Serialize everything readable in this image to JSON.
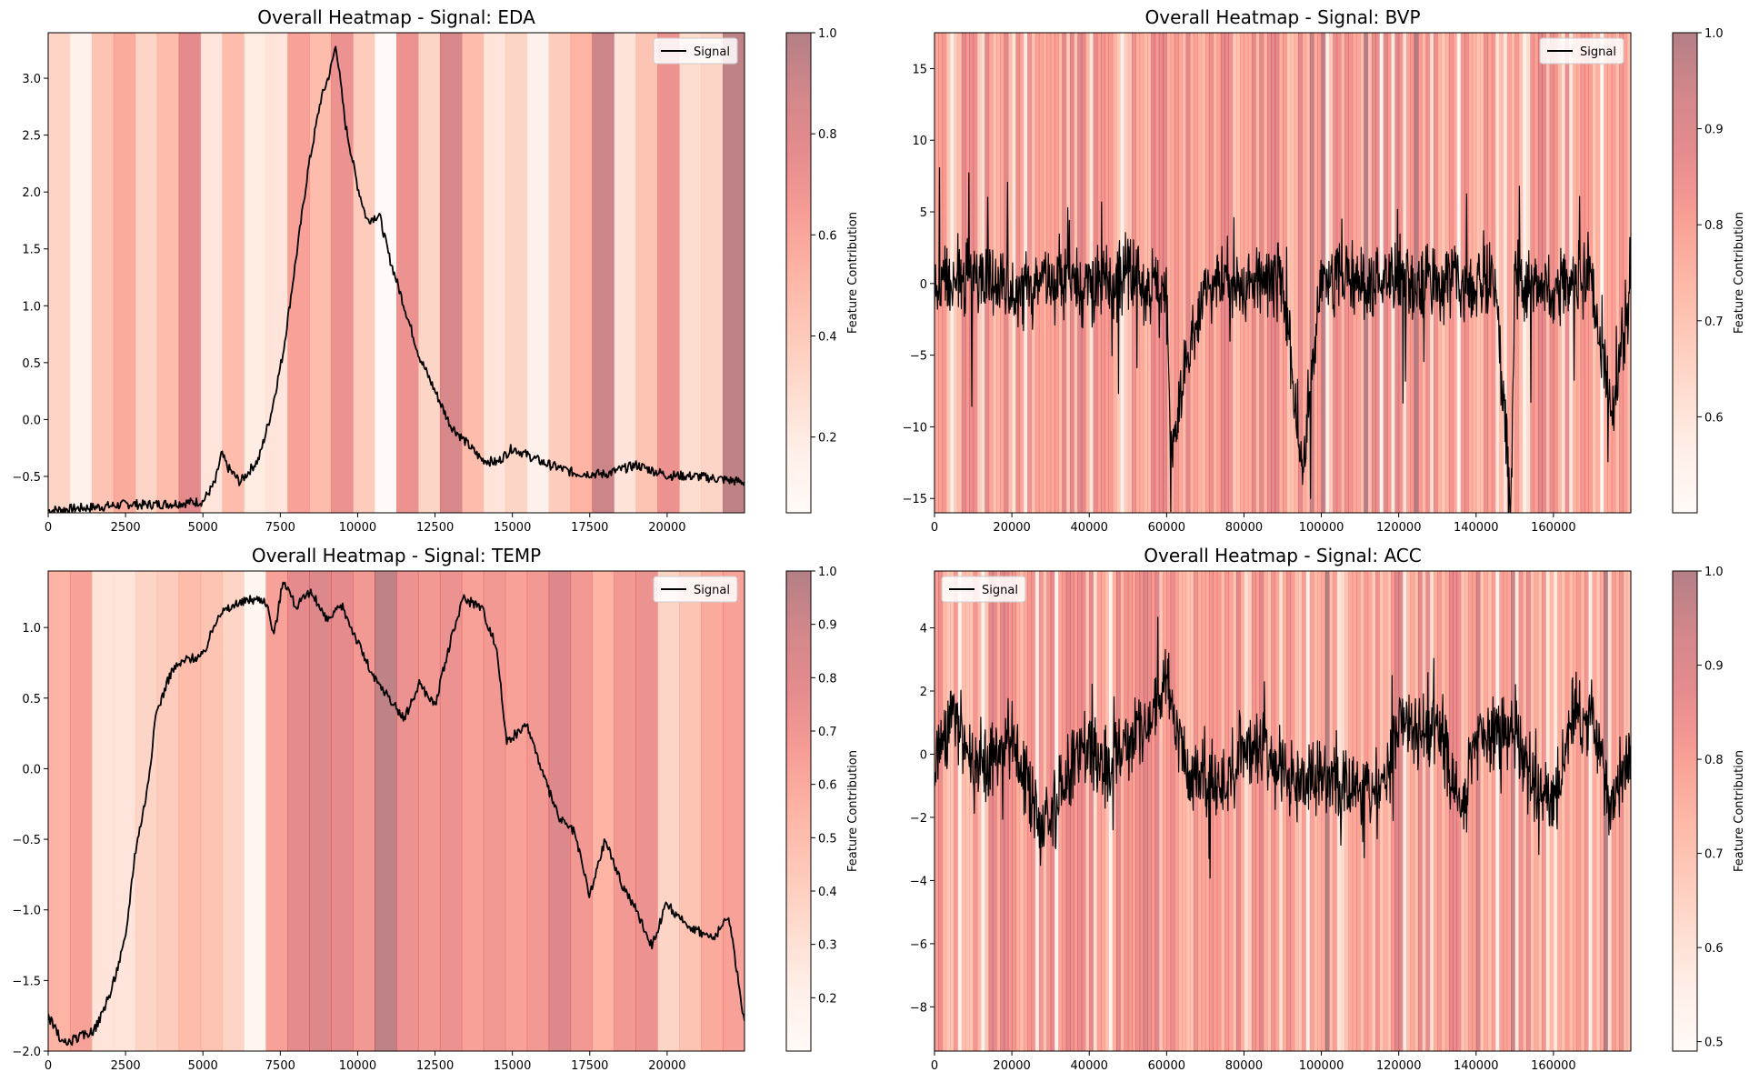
{
  "figure": {
    "background": "#ffffff"
  },
  "chart_data": [
    {
      "type": "line",
      "title": "Overall Heatmap - Signal: EDA",
      "xlabel": "",
      "ylabel": "",
      "xlim": [
        0,
        22500
      ],
      "ylim": [
        -0.82,
        3.4
      ],
      "xticks": [
        0,
        2500,
        5000,
        7500,
        10000,
        12500,
        15000,
        17500,
        20000
      ],
      "yticks": [
        -0.5,
        0.0,
        0.5,
        1.0,
        1.5,
        2.0,
        2.5,
        3.0
      ],
      "legend": {
        "position": "top-right",
        "entries": [
          "Signal"
        ]
      },
      "colorbar": {
        "label": "Feature Contribution",
        "min": 0.05,
        "max": 1.0,
        "ticks": [
          0.2,
          0.4,
          0.6,
          0.8,
          1.0
        ]
      },
      "heatmap_bands": [
        0.3,
        0.1,
        0.4,
        0.55,
        0.3,
        0.45,
        0.75,
        0.2,
        0.45,
        0.15,
        0.2,
        0.6,
        0.45,
        0.7,
        0.35,
        0.0,
        0.7,
        0.3,
        0.85,
        0.45,
        0.2,
        0.3,
        0.1,
        0.35,
        0.5,
        0.9,
        0.2,
        0.4,
        0.7,
        0.25,
        0.3,
        0.95
      ],
      "series": [
        {
          "name": "Signal",
          "color": "#000000",
          "x": [
            0,
            1000,
            2000,
            2700,
            3000,
            4000,
            5000,
            5400,
            5600,
            5800,
            6200,
            6800,
            7200,
            7600,
            8000,
            8400,
            8800,
            9100,
            9300,
            9600,
            10000,
            10300,
            10700,
            11000,
            11500,
            12000,
            12500,
            13000,
            13500,
            14000,
            14500,
            15000,
            16000,
            17000,
            18000,
            19000,
            20000,
            21000,
            22500
          ],
          "values": [
            -0.8,
            -0.78,
            -0.76,
            -0.74,
            -0.75,
            -0.74,
            -0.72,
            -0.55,
            -0.3,
            -0.42,
            -0.55,
            -0.35,
            0.05,
            0.6,
            1.4,
            2.2,
            2.8,
            3.05,
            3.3,
            2.6,
            2.05,
            1.75,
            1.8,
            1.45,
            1.0,
            0.55,
            0.25,
            -0.05,
            -0.2,
            -0.35,
            -0.38,
            -0.25,
            -0.38,
            -0.47,
            -0.48,
            -0.4,
            -0.49,
            -0.5,
            -0.55
          ]
        }
      ]
    },
    {
      "type": "line",
      "title": "Overall Heatmap - Signal: BVP",
      "xlabel": "",
      "ylabel": "",
      "xlim": [
        0,
        180000
      ],
      "ylim": [
        -16,
        17.5
      ],
      "xticks": [
        0,
        20000,
        40000,
        60000,
        80000,
        100000,
        120000,
        140000,
        160000
      ],
      "yticks": [
        -15,
        -10,
        -5,
        0,
        5,
        10,
        15
      ],
      "legend": {
        "position": "top-right",
        "entries": [
          "Signal"
        ]
      },
      "colorbar": {
        "label": "Feature Contribution",
        "min": 0.5,
        "max": 1.0,
        "ticks": [
          0.6,
          0.7,
          0.8,
          0.9,
          1.0
        ]
      },
      "heatmap_band_count": 180,
      "series": [
        {
          "name": "Signal",
          "color": "#000000",
          "x": [
            0,
            10000,
            20000,
            30000,
            40000,
            50000,
            60000,
            61000,
            70000,
            80000,
            90000,
            95000,
            100000,
            110000,
            120000,
            130000,
            135000,
            140000,
            145000,
            149000,
            150000,
            160000,
            170000,
            175000,
            180000
          ],
          "values": [
            0,
            0.5,
            -0.5,
            0.5,
            -0.3,
            0.4,
            -0.5,
            -12,
            0.4,
            0,
            0.3,
            -13,
            0.5,
            -0.3,
            0.2,
            0,
            0.4,
            -0.5,
            0.3,
            -15.5,
            0.2,
            -0.2,
            0.3,
            -9,
            0
          ]
        }
      ]
    },
    {
      "type": "line",
      "title": "Overall Heatmap - Signal: TEMP",
      "xlabel": "",
      "ylabel": "",
      "xlim": [
        0,
        22500
      ],
      "ylim": [
        -2.0,
        1.4
      ],
      "xticks": [
        0,
        2500,
        5000,
        7500,
        10000,
        12500,
        15000,
        17500,
        20000
      ],
      "yticks": [
        -2.0,
        -1.5,
        -1.0,
        -0.5,
        0.0,
        0.5,
        1.0
      ],
      "legend": {
        "position": "top-right",
        "entries": [
          "Signal"
        ]
      },
      "colorbar": {
        "label": "Feature Contribution",
        "min": 0.1,
        "max": 1.0,
        "ticks": [
          0.2,
          0.3,
          0.4,
          0.5,
          0.6,
          0.7,
          0.8,
          0.9,
          1.0
        ]
      },
      "heatmap_bands": [
        0.5,
        0.6,
        0.2,
        0.2,
        0.3,
        0.35,
        0.45,
        0.4,
        0.3,
        0.05,
        0.6,
        0.75,
        0.8,
        0.75,
        0.65,
        0.95,
        0.7,
        0.65,
        0.7,
        0.6,
        0.65,
        0.6,
        0.65,
        0.8,
        0.65,
        0.5,
        0.65,
        0.7,
        0.3,
        0.4,
        0.55,
        0.6
      ],
      "series": [
        {
          "name": "Signal",
          "color": "#000000",
          "x": [
            0,
            500,
            1000,
            1500,
            2000,
            2500,
            2800,
            3200,
            3500,
            4000,
            4500,
            5000,
            5500,
            6000,
            6500,
            7000,
            7300,
            7600,
            8000,
            8500,
            9000,
            9500,
            10000,
            10500,
            11000,
            11500,
            12000,
            12500,
            13000,
            13400,
            14000,
            14500,
            14800,
            15500,
            16000,
            16500,
            17000,
            17500,
            18000,
            18500,
            19000,
            19500,
            20000,
            20300,
            21000,
            21500,
            22000,
            22500
          ],
          "values": [
            -1.75,
            -1.95,
            -1.9,
            -1.85,
            -1.6,
            -1.2,
            -0.6,
            -0.15,
            0.4,
            0.7,
            0.78,
            0.8,
            1.1,
            1.15,
            1.2,
            1.2,
            0.95,
            1.35,
            1.15,
            1.25,
            1.05,
            1.15,
            0.9,
            0.65,
            0.5,
            0.35,
            0.6,
            0.45,
            0.9,
            1.2,
            1.15,
            0.85,
            0.2,
            0.3,
            -0.05,
            -0.35,
            -0.45,
            -0.9,
            -0.5,
            -0.8,
            -1.0,
            -1.25,
            -0.95,
            -1.05,
            -1.15,
            -1.2,
            -1.05,
            -1.8
          ]
        }
      ]
    },
    {
      "type": "line",
      "title": "Overall Heatmap - Signal: ACC",
      "xlabel": "",
      "ylabel": "",
      "xlim": [
        0,
        180000
      ],
      "ylim": [
        -9.4,
        5.8
      ],
      "xticks": [
        0,
        20000,
        40000,
        60000,
        80000,
        100000,
        120000,
        140000,
        160000
      ],
      "yticks": [
        -8,
        -6,
        -4,
        -2,
        0,
        2,
        4
      ],
      "legend": {
        "position": "top-left",
        "entries": [
          "Signal"
        ]
      },
      "colorbar": {
        "label": "Feature Contribution",
        "min": 0.49,
        "max": 1.0,
        "ticks": [
          0.5,
          0.6,
          0.7,
          0.8,
          0.9,
          1.0
        ]
      },
      "heatmap_band_count": 180,
      "series": [
        {
          "name": "Signal",
          "color": "#000000",
          "x": [
            0,
            5000,
            10000,
            20000,
            28000,
            32000,
            38000,
            45000,
            55000,
            60000,
            65000,
            70000,
            75000,
            80000,
            85000,
            90000,
            95000,
            100000,
            105000,
            110000,
            115000,
            120000,
            125000,
            130000,
            135000,
            137000,
            140000,
            145000,
            150000,
            155000,
            160000,
            165000,
            170000,
            175000,
            180000
          ],
          "values": [
            -0.5,
            1.5,
            -0.5,
            0.5,
            -2.5,
            -1.5,
            0.5,
            -0.5,
            1.0,
            2.5,
            -0.5,
            -0.8,
            -1.0,
            0.3,
            0.3,
            -0.8,
            -1.0,
            -0.5,
            -1.2,
            -0.8,
            -1.4,
            0.8,
            0.8,
            0.8,
            -1.2,
            -1.5,
            0.6,
            0.8,
            0.8,
            -1.2,
            -1.5,
            1.0,
            1.1,
            -1.5,
            0.0
          ]
        }
      ]
    }
  ]
}
